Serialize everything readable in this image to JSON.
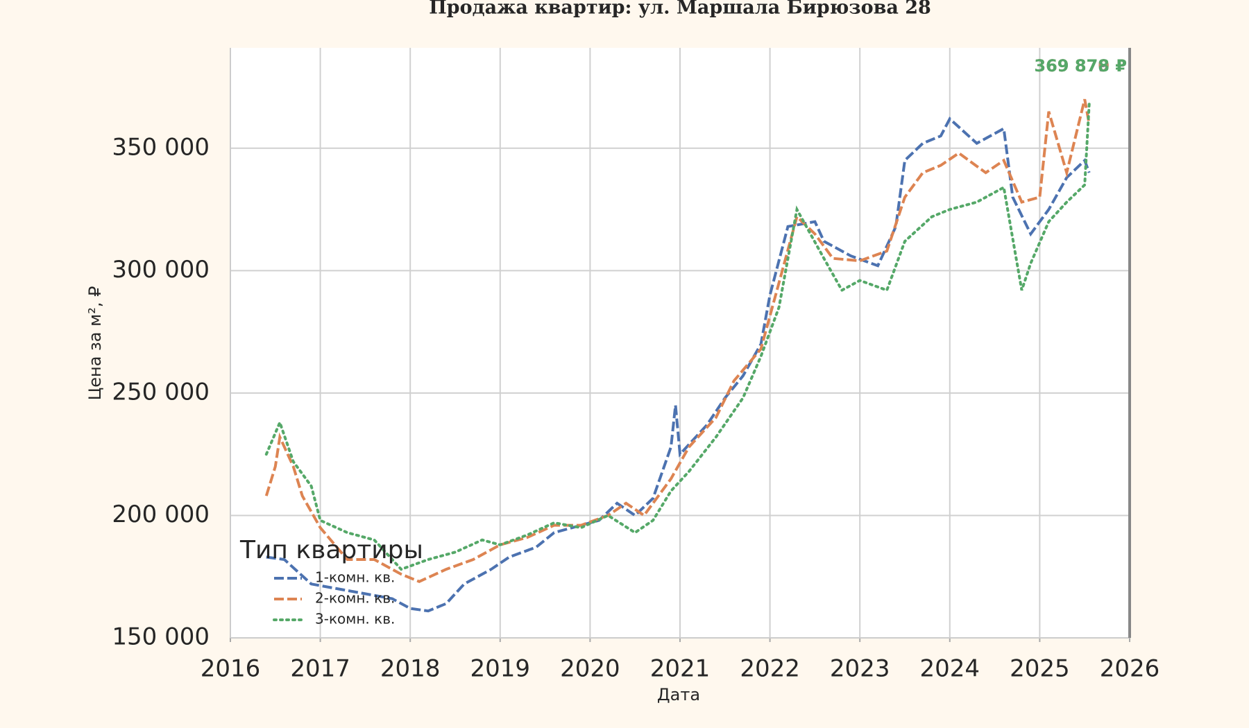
{
  "chart_data": {
    "type": "line",
    "title": "Продажа квартир: ул. Маршала Бирюзова 28",
    "x_label": "Дата",
    "y_label": "Цена за м², ₽",
    "legend_title": "Тип квартиры",
    "legend": "lower left",
    "grid": true,
    "xlim": [
      2016,
      2026
    ],
    "xticks": [
      2016,
      2017,
      2018,
      2019,
      2020,
      2021,
      2022,
      2023,
      2024,
      2025,
      2026
    ],
    "ylim": [
      150000,
      391000
    ],
    "yticks": [
      {
        "value": 150000,
        "label": "150 000"
      },
      {
        "value": 200000,
        "label": "200 000"
      },
      {
        "value": 250000,
        "label": "250 000"
      },
      {
        "value": 300000,
        "label": "300 000"
      },
      {
        "value": 350000,
        "label": "350 000"
      }
    ],
    "annotations": [
      {
        "text": "369 879 ₽",
        "color": "#888888"
      },
      {
        "text": "369 870 ₽",
        "color": "#b88a6a"
      },
      {
        "text": "369 878 ₽",
        "color": "#55a868"
      }
    ],
    "series": [
      {
        "name": "1-комн. кв.",
        "color": "#4c72b0",
        "dash": "dashed",
        "x": [
          2016.4,
          2016.6,
          2016.9,
          2017.2,
          2017.5,
          2017.8,
          2018.0,
          2018.2,
          2018.4,
          2018.6,
          2018.9,
          2019.1,
          2019.4,
          2019.6,
          2019.9,
          2020.1,
          2020.3,
          2020.5,
          2020.7,
          2020.9,
          2020.95,
          2021.0,
          2021.3,
          2021.5,
          2021.7,
          2021.9,
          2022.0,
          2022.2,
          2022.5,
          2022.6,
          2022.9,
          2023.2,
          2023.4,
          2023.5,
          2023.7,
          2023.9,
          2024.0,
          2024.3,
          2024.6,
          2024.7,
          2024.9,
          2025.1,
          2025.3,
          2025.5,
          2025.55
        ],
        "values": [
          183000,
          182000,
          172000,
          170000,
          168000,
          166000,
          162000,
          161000,
          164000,
          172000,
          178000,
          183000,
          187000,
          193000,
          196000,
          198000,
          205000,
          200000,
          207000,
          228000,
          245000,
          225000,
          237000,
          248000,
          257000,
          270000,
          290000,
          318000,
          320000,
          312000,
          306000,
          302000,
          318000,
          345000,
          352000,
          355000,
          362000,
          352000,
          358000,
          330000,
          315000,
          325000,
          338000,
          345000,
          340000
        ]
      },
      {
        "name": "2-комн. кв.",
        "color": "#dd8452",
        "dash": "dashed",
        "x": [
          2016.4,
          2016.5,
          2016.55,
          2016.7,
          2016.8,
          2017.0,
          2017.3,
          2017.6,
          2017.9,
          2018.1,
          2018.4,
          2018.7,
          2019.0,
          2019.3,
          2019.6,
          2019.9,
          2020.2,
          2020.4,
          2020.6,
          2020.9,
          2021.1,
          2021.4,
          2021.6,
          2021.9,
          2022.1,
          2022.3,
          2022.5,
          2022.7,
          2023.0,
          2023.3,
          2023.5,
          2023.7,
          2023.9,
          2024.1,
          2024.4,
          2024.6,
          2024.8,
          2025.0,
          2025.1,
          2025.3,
          2025.5,
          2025.55
        ],
        "values": [
          208000,
          220000,
          232000,
          220000,
          208000,
          195000,
          182000,
          182000,
          176000,
          173000,
          178000,
          182000,
          188000,
          191000,
          196000,
          196000,
          200000,
          205000,
          200000,
          215000,
          228000,
          240000,
          255000,
          268000,
          295000,
          322000,
          315000,
          305000,
          304000,
          308000,
          330000,
          340000,
          343000,
          348000,
          340000,
          345000,
          328000,
          330000,
          365000,
          340000,
          370000,
          360000
        ]
      },
      {
        "name": "3-комн. кв.",
        "color": "#55a868",
        "dash": "dotted",
        "x": [
          2016.4,
          2016.55,
          2016.7,
          2016.9,
          2017.0,
          2017.3,
          2017.6,
          2017.9,
          2018.2,
          2018.5,
          2018.8,
          2019.0,
          2019.3,
          2019.6,
          2019.9,
          2020.2,
          2020.5,
          2020.7,
          2020.9,
          2021.1,
          2021.4,
          2021.7,
          2021.9,
          2022.1,
          2022.3,
          2022.6,
          2022.8,
          2023.0,
          2023.3,
          2023.5,
          2023.8,
          2024.0,
          2024.3,
          2024.6,
          2024.8,
          2024.9,
          2025.1,
          2025.3,
          2025.5,
          2025.55
        ],
        "values": [
          225000,
          238000,
          222000,
          212000,
          198000,
          193000,
          190000,
          178000,
          182000,
          185000,
          190000,
          188000,
          192000,
          197000,
          195000,
          200000,
          193000,
          198000,
          210000,
          218000,
          232000,
          248000,
          265000,
          285000,
          325000,
          305000,
          292000,
          296000,
          292000,
          312000,
          322000,
          325000,
          328000,
          334000,
          292000,
          303000,
          320000,
          328000,
          335000,
          368000
        ]
      }
    ]
  }
}
